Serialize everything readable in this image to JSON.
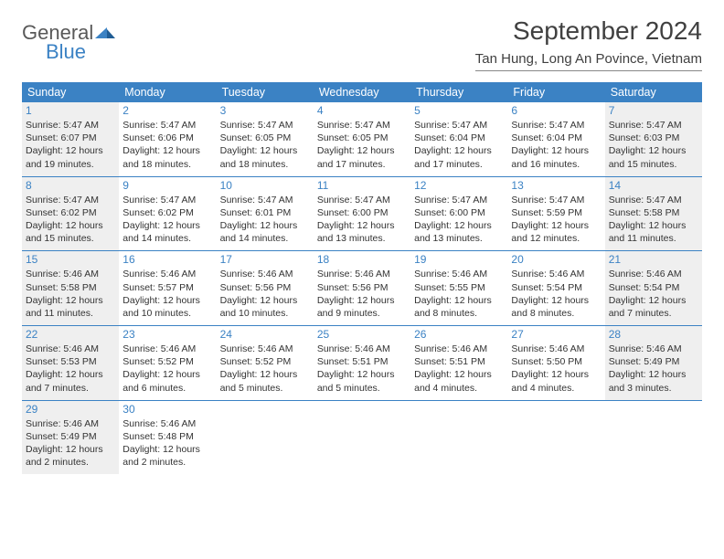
{
  "logo": {
    "word1": "General",
    "word2": "Blue"
  },
  "header": {
    "month_title": "September 2024",
    "location": "Tan Hung, Long An Povince, Vietnam"
  },
  "colors": {
    "header_bg": "#3b82c4",
    "header_text": "#ffffff",
    "daynum": "#3b82c4",
    "body_text": "#333333",
    "shaded": "#efefef",
    "rule": "#3b82c4"
  },
  "day_names": [
    "Sunday",
    "Monday",
    "Tuesday",
    "Wednesday",
    "Thursday",
    "Friday",
    "Saturday"
  ],
  "weeks": [
    [
      {
        "n": "1",
        "shaded": true,
        "sr": "Sunrise: 5:47 AM",
        "ss": "Sunset: 6:07 PM",
        "dl": "Daylight: 12 hours and 19 minutes."
      },
      {
        "n": "2",
        "shaded": false,
        "sr": "Sunrise: 5:47 AM",
        "ss": "Sunset: 6:06 PM",
        "dl": "Daylight: 12 hours and 18 minutes."
      },
      {
        "n": "3",
        "shaded": false,
        "sr": "Sunrise: 5:47 AM",
        "ss": "Sunset: 6:05 PM",
        "dl": "Daylight: 12 hours and 18 minutes."
      },
      {
        "n": "4",
        "shaded": false,
        "sr": "Sunrise: 5:47 AM",
        "ss": "Sunset: 6:05 PM",
        "dl": "Daylight: 12 hours and 17 minutes."
      },
      {
        "n": "5",
        "shaded": false,
        "sr": "Sunrise: 5:47 AM",
        "ss": "Sunset: 6:04 PM",
        "dl": "Daylight: 12 hours and 17 minutes."
      },
      {
        "n": "6",
        "shaded": false,
        "sr": "Sunrise: 5:47 AM",
        "ss": "Sunset: 6:04 PM",
        "dl": "Daylight: 12 hours and 16 minutes."
      },
      {
        "n": "7",
        "shaded": true,
        "sr": "Sunrise: 5:47 AM",
        "ss": "Sunset: 6:03 PM",
        "dl": "Daylight: 12 hours and 15 minutes."
      }
    ],
    [
      {
        "n": "8",
        "shaded": true,
        "sr": "Sunrise: 5:47 AM",
        "ss": "Sunset: 6:02 PM",
        "dl": "Daylight: 12 hours and 15 minutes."
      },
      {
        "n": "9",
        "shaded": false,
        "sr": "Sunrise: 5:47 AM",
        "ss": "Sunset: 6:02 PM",
        "dl": "Daylight: 12 hours and 14 minutes."
      },
      {
        "n": "10",
        "shaded": false,
        "sr": "Sunrise: 5:47 AM",
        "ss": "Sunset: 6:01 PM",
        "dl": "Daylight: 12 hours and 14 minutes."
      },
      {
        "n": "11",
        "shaded": false,
        "sr": "Sunrise: 5:47 AM",
        "ss": "Sunset: 6:00 PM",
        "dl": "Daylight: 12 hours and 13 minutes."
      },
      {
        "n": "12",
        "shaded": false,
        "sr": "Sunrise: 5:47 AM",
        "ss": "Sunset: 6:00 PM",
        "dl": "Daylight: 12 hours and 13 minutes."
      },
      {
        "n": "13",
        "shaded": false,
        "sr": "Sunrise: 5:47 AM",
        "ss": "Sunset: 5:59 PM",
        "dl": "Daylight: 12 hours and 12 minutes."
      },
      {
        "n": "14",
        "shaded": true,
        "sr": "Sunrise: 5:47 AM",
        "ss": "Sunset: 5:58 PM",
        "dl": "Daylight: 12 hours and 11 minutes."
      }
    ],
    [
      {
        "n": "15",
        "shaded": true,
        "sr": "Sunrise: 5:46 AM",
        "ss": "Sunset: 5:58 PM",
        "dl": "Daylight: 12 hours and 11 minutes."
      },
      {
        "n": "16",
        "shaded": false,
        "sr": "Sunrise: 5:46 AM",
        "ss": "Sunset: 5:57 PM",
        "dl": "Daylight: 12 hours and 10 minutes."
      },
      {
        "n": "17",
        "shaded": false,
        "sr": "Sunrise: 5:46 AM",
        "ss": "Sunset: 5:56 PM",
        "dl": "Daylight: 12 hours and 10 minutes."
      },
      {
        "n": "18",
        "shaded": false,
        "sr": "Sunrise: 5:46 AM",
        "ss": "Sunset: 5:56 PM",
        "dl": "Daylight: 12 hours and 9 minutes."
      },
      {
        "n": "19",
        "shaded": false,
        "sr": "Sunrise: 5:46 AM",
        "ss": "Sunset: 5:55 PM",
        "dl": "Daylight: 12 hours and 8 minutes."
      },
      {
        "n": "20",
        "shaded": false,
        "sr": "Sunrise: 5:46 AM",
        "ss": "Sunset: 5:54 PM",
        "dl": "Daylight: 12 hours and 8 minutes."
      },
      {
        "n": "21",
        "shaded": true,
        "sr": "Sunrise: 5:46 AM",
        "ss": "Sunset: 5:54 PM",
        "dl": "Daylight: 12 hours and 7 minutes."
      }
    ],
    [
      {
        "n": "22",
        "shaded": true,
        "sr": "Sunrise: 5:46 AM",
        "ss": "Sunset: 5:53 PM",
        "dl": "Daylight: 12 hours and 7 minutes."
      },
      {
        "n": "23",
        "shaded": false,
        "sr": "Sunrise: 5:46 AM",
        "ss": "Sunset: 5:52 PM",
        "dl": "Daylight: 12 hours and 6 minutes."
      },
      {
        "n": "24",
        "shaded": false,
        "sr": "Sunrise: 5:46 AM",
        "ss": "Sunset: 5:52 PM",
        "dl": "Daylight: 12 hours and 5 minutes."
      },
      {
        "n": "25",
        "shaded": false,
        "sr": "Sunrise: 5:46 AM",
        "ss": "Sunset: 5:51 PM",
        "dl": "Daylight: 12 hours and 5 minutes."
      },
      {
        "n": "26",
        "shaded": false,
        "sr": "Sunrise: 5:46 AM",
        "ss": "Sunset: 5:51 PM",
        "dl": "Daylight: 12 hours and 4 minutes."
      },
      {
        "n": "27",
        "shaded": false,
        "sr": "Sunrise: 5:46 AM",
        "ss": "Sunset: 5:50 PM",
        "dl": "Daylight: 12 hours and 4 minutes."
      },
      {
        "n": "28",
        "shaded": true,
        "sr": "Sunrise: 5:46 AM",
        "ss": "Sunset: 5:49 PM",
        "dl": "Daylight: 12 hours and 3 minutes."
      }
    ],
    [
      {
        "n": "29",
        "shaded": true,
        "sr": "Sunrise: 5:46 AM",
        "ss": "Sunset: 5:49 PM",
        "dl": "Daylight: 12 hours and 2 minutes."
      },
      {
        "n": "30",
        "shaded": false,
        "sr": "Sunrise: 5:46 AM",
        "ss": "Sunset: 5:48 PM",
        "dl": "Daylight: 12 hours and 2 minutes."
      },
      null,
      null,
      null,
      null,
      null
    ]
  ]
}
